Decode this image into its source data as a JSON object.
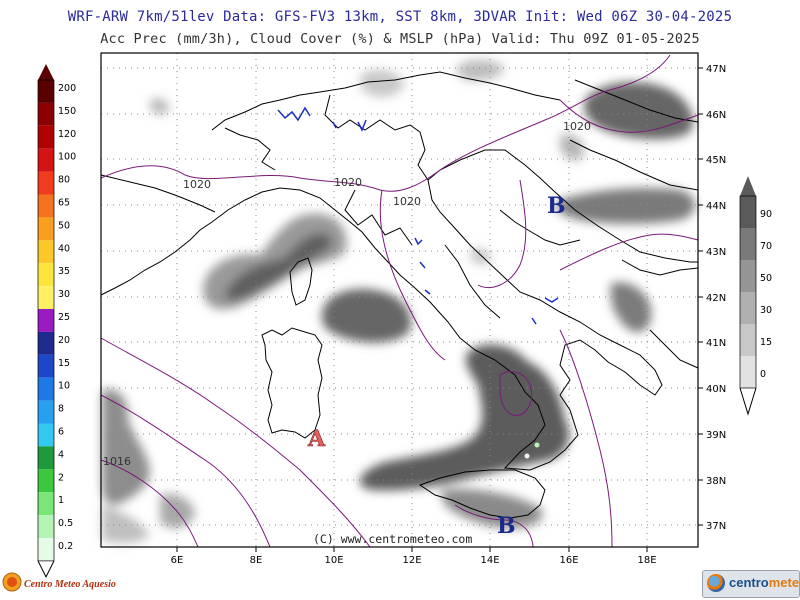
{
  "header": {
    "line1": "WRF-ARW 7km/51lev  Data: GFS-FV3 13km, SST 8km, 3DVAR  Init: Wed 06Z 30-04-2025",
    "line2": "Acc Prec (mm/3h), Cloud Cover (%) & MSLP (hPa)  Valid: Thu 09Z 01-05-2025"
  },
  "map": {
    "lon_labels": [
      "6E",
      "8E",
      "10E",
      "12E",
      "14E",
      "16E",
      "18E"
    ],
    "lat_labels": [
      "47N",
      "46N",
      "45N",
      "44N",
      "43N",
      "42N",
      "41N",
      "40N",
      "39N",
      "38N",
      "37N"
    ],
    "copyright": "(C) www.centrometeo.com",
    "isobar_labels": [
      "1020",
      "1020",
      "1020",
      "1020",
      "1016"
    ],
    "pressure_centers": [
      "A",
      "B",
      "B"
    ]
  },
  "precip_scale": {
    "levels": [
      "200",
      "150",
      "120",
      "100",
      "80",
      "65",
      "50",
      "40",
      "35",
      "30",
      "25",
      "20",
      "15",
      "10",
      "8",
      "6",
      "4",
      "2",
      "1",
      "0.5",
      "0.2"
    ],
    "colors": [
      "#5a0000",
      "#8b0000",
      "#b20000",
      "#d41414",
      "#ee3c1c",
      "#f5731e",
      "#f8a01e",
      "#fbc828",
      "#fde63c",
      "#fff064",
      "#9a1ac4",
      "#1e2a8c",
      "#1e46c8",
      "#1e78e6",
      "#28a0f0",
      "#32c8f0",
      "#1e9a3c",
      "#3cc83c",
      "#78e678",
      "#b4f5b4",
      "#e6fbe6"
    ]
  },
  "cloud_scale": {
    "levels": [
      "90",
      "70",
      "50",
      "30",
      "15",
      "0"
    ],
    "colors": [
      "#5a5a5a",
      "#7a7a7a",
      "#959595",
      "#b0b0b0",
      "#c8c8c8",
      "#e2e2e2"
    ]
  },
  "logos": {
    "left": "Centro Meteo Aquesio",
    "right_a": "centro",
    "right_b": "meteo"
  }
}
